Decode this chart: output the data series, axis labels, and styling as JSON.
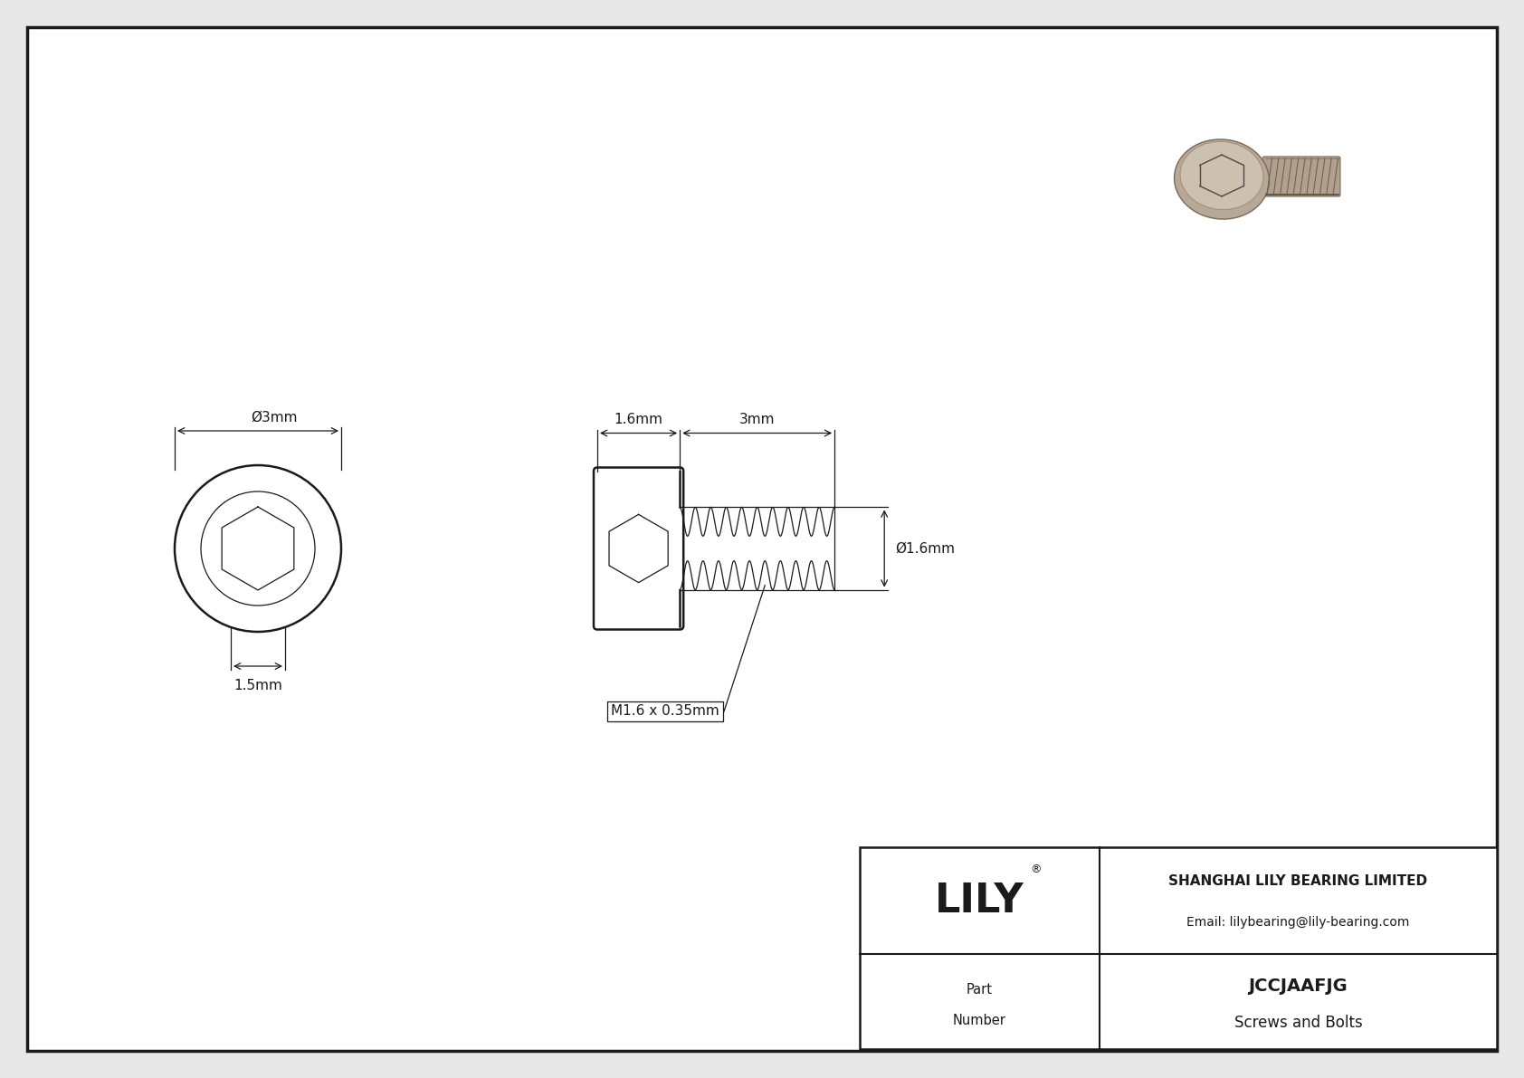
{
  "bg_color": "#e8e8e8",
  "drawing_bg": "#ffffff",
  "border_color": "#1a1a1a",
  "line_color": "#1a1a1a",
  "title_company": "SHANGHAI LILY BEARING LIMITED",
  "title_email": "Email: lilybearing@lily-bearing.com",
  "part_number": "JCCJAAFJG",
  "part_type": "Screws and Bolts",
  "logo_text": "LILY",
  "dim_head_diameter": "Ø3mm",
  "dim_head_height": "1.5mm",
  "dim_thread_length": "3mm",
  "dim_shank_length": "1.6mm",
  "dim_thread_diameter": "Ø1.6mm",
  "dim_thread_label": "M1.6 x 0.35mm",
  "font_size_dim": 11,
  "font_size_logo": 32,
  "font_size_company": 11,
  "font_size_part": 13,
  "font_size_part_label": 10.5
}
